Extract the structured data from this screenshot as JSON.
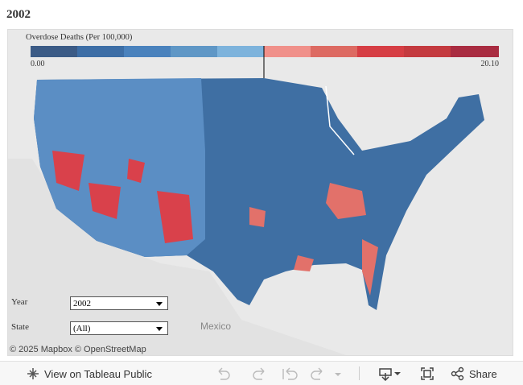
{
  "header": {
    "title": "2002"
  },
  "legend": {
    "title": "Overdose Deaths (Per 100,000)",
    "min_label": "0.00",
    "max_label": "20.10"
  },
  "filters": [
    {
      "label": "Year",
      "value": "2002"
    },
    {
      "label": "State",
      "value": "(All)"
    }
  ],
  "map": {
    "place_label": "Mexico",
    "attribution": "© 2025 Mapbox  © OpenStreetMap"
  },
  "toolbar": {
    "view_link": "View on Tableau Public",
    "share": "Share"
  }
}
